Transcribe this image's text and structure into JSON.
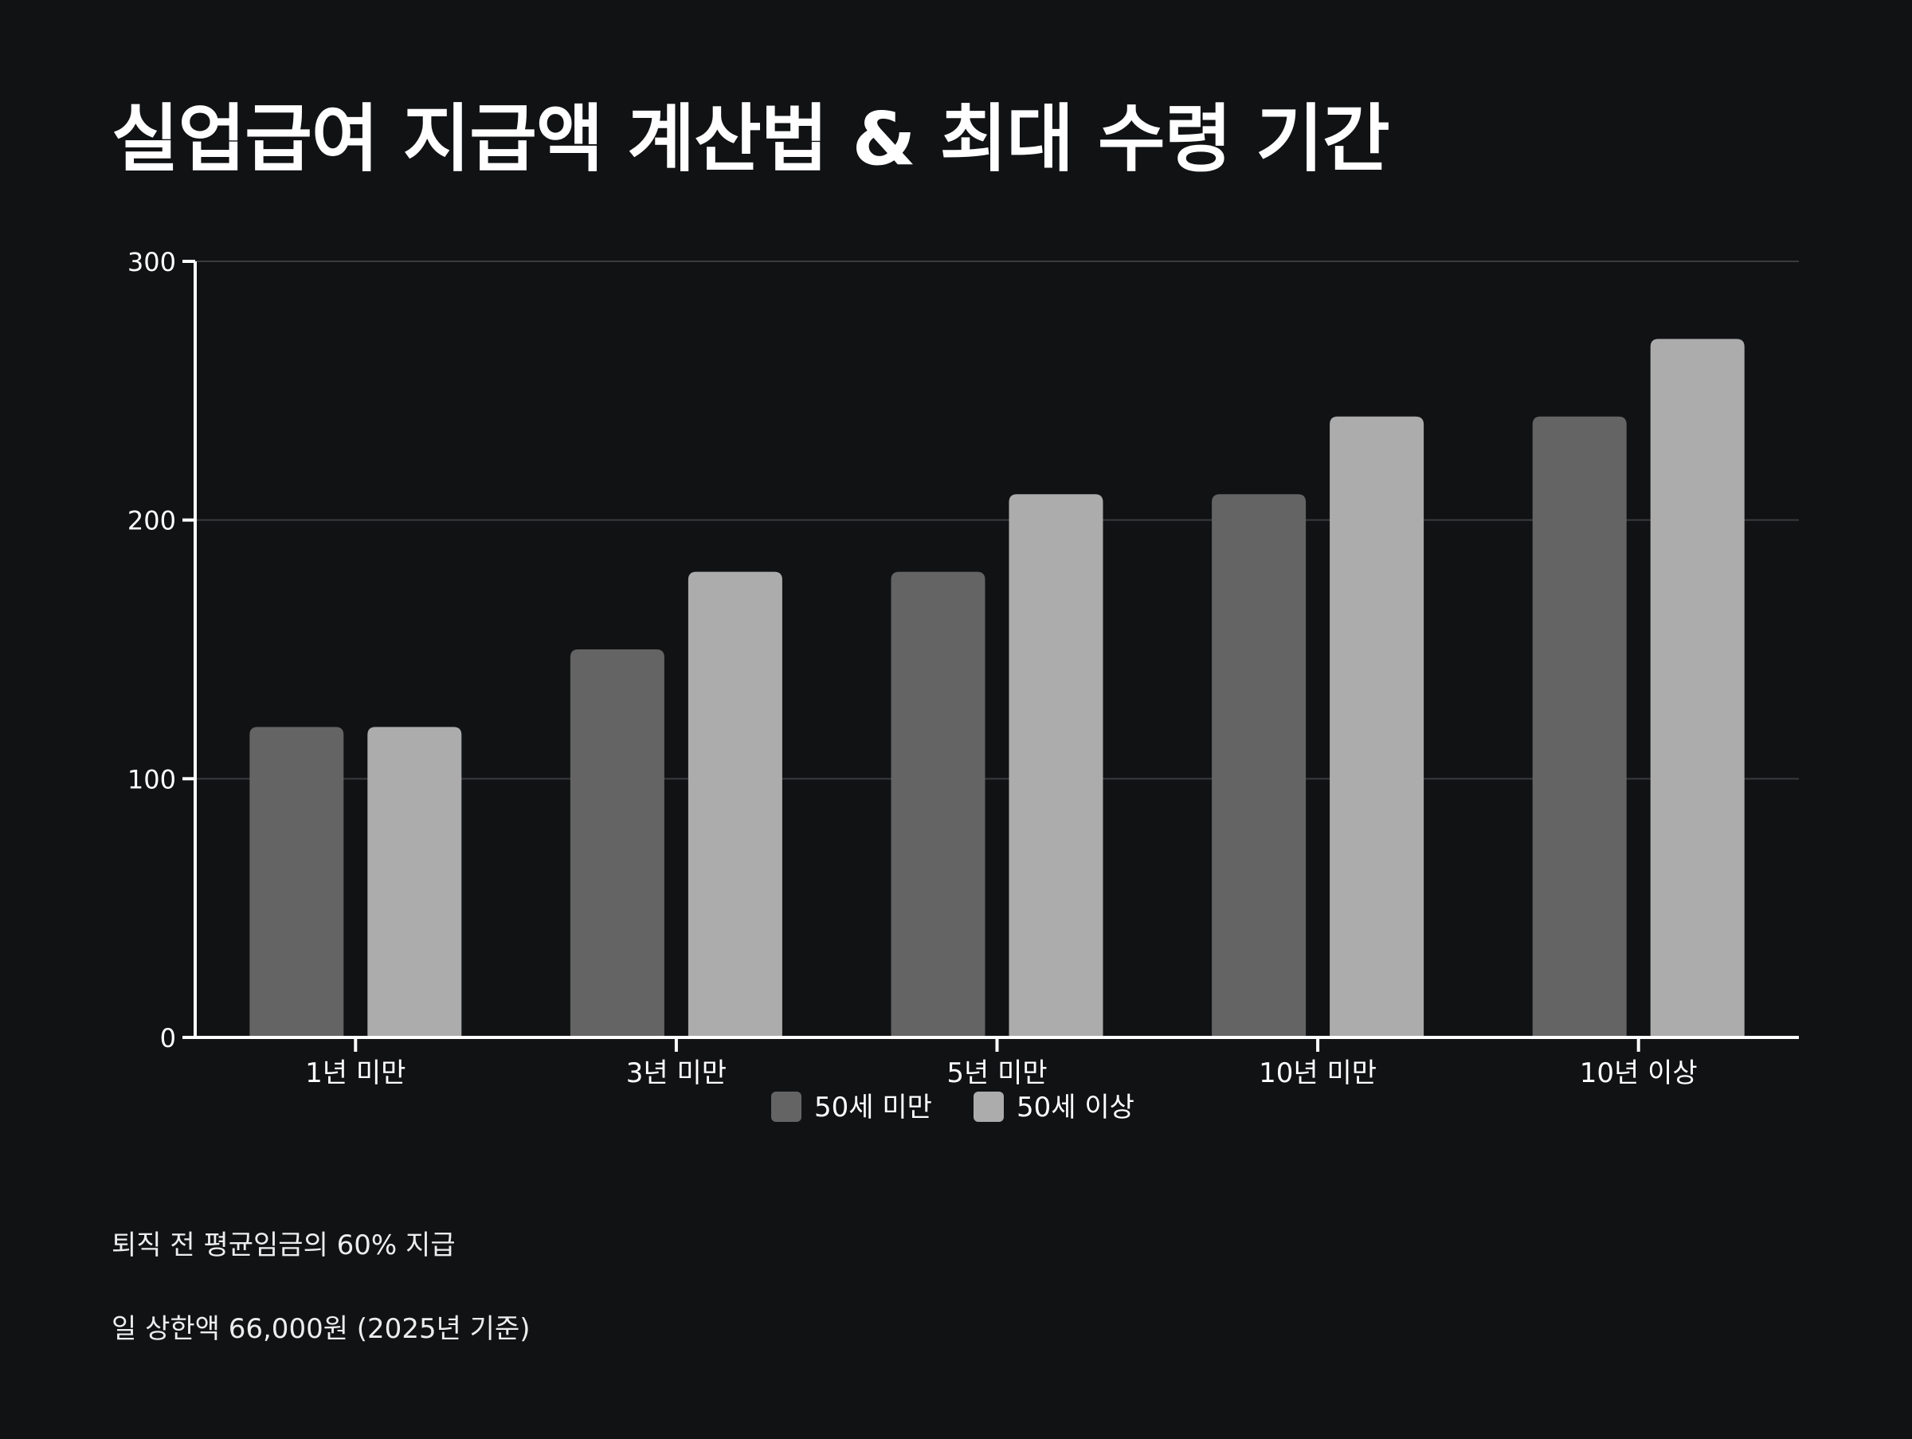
{
  "title": "실업급여 지급액 계산법 & 최대 수령 기간",
  "notes": [
    "퇴직 전 평균임금의 60% 지급",
    "일 상한액 66,000원 (2025년 기준)"
  ],
  "chart_data": {
    "type": "bar",
    "title": "실업급여 지급액 계산법 & 최대 수령 기간",
    "categories": [
      "1년 미만",
      "3년 미만",
      "5년 미만",
      "10년 미만",
      "10년 이상"
    ],
    "series": [
      {
        "name": "50세 미만",
        "color": "#646464",
        "values": [
          120,
          150,
          180,
          210,
          240
        ]
      },
      {
        "name": "50세 이상",
        "color": "#acacac",
        "values": [
          120,
          180,
          210,
          240,
          270
        ]
      }
    ],
    "ylim": [
      0,
      300
    ],
    "yticks": [
      0,
      100,
      200,
      300
    ],
    "grid": true,
    "legend": "bottom-center",
    "colors": {
      "background": "#111214",
      "axis": "#ffffff",
      "grid": "#3a3b3d",
      "text": "#ffffff"
    }
  }
}
